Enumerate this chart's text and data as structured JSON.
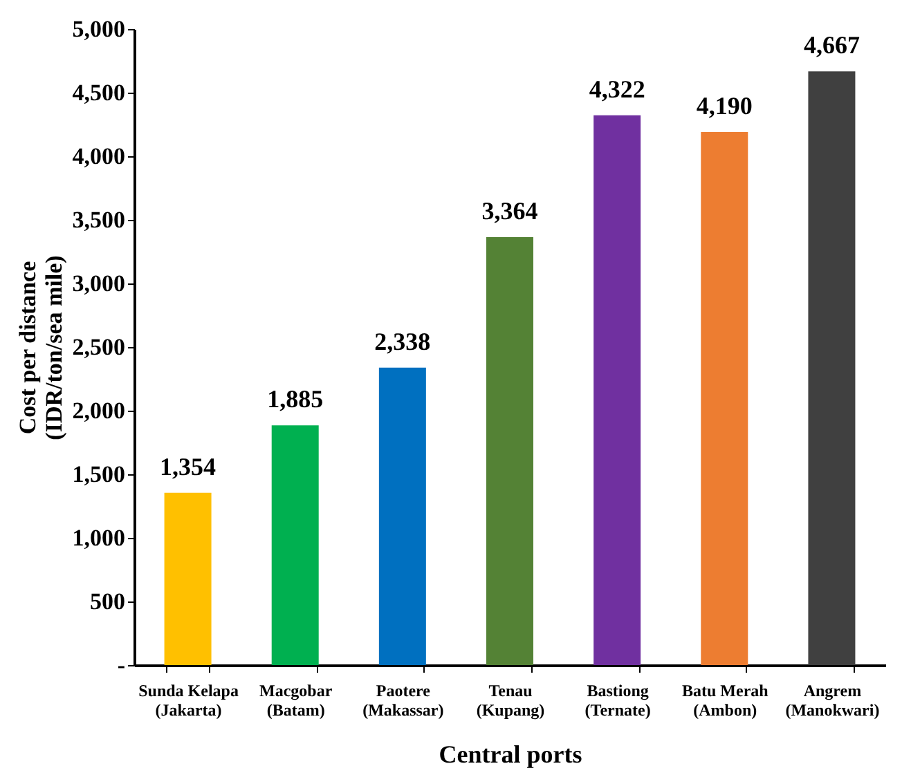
{
  "chart_data": {
    "type": "bar",
    "xlabel": "Central ports",
    "ylabel": "Cost per distance\n(IDR/ton/sea mile)",
    "categories": [
      "Sunda Kelapa\n(Jakarta)",
      "Macgobar\n(Batam)",
      "Paotere\n(Makassar)",
      "Tenau\n(Kupang)",
      "Bastiong\n(Ternate)",
      "Batu Merah\n(Ambon)",
      "Angrem\n(Manokwari)"
    ],
    "values": [
      1354,
      1885,
      2338,
      3364,
      4322,
      4190,
      4667
    ],
    "colors": [
      "#ffc000",
      "#00b050",
      "#0070c0",
      "#548235",
      "#7030a0",
      "#ed7d31",
      "#404040"
    ],
    "value_labels": [
      "1,354",
      "1,885",
      "2,338",
      "3,364",
      "4,322",
      "4,190",
      "4,667"
    ],
    "ylim": [
      0,
      5000
    ],
    "yticks": [
      {
        "value": 0,
        "label": "-"
      },
      {
        "value": 500,
        "label": "500"
      },
      {
        "value": 1000,
        "label": "1,000"
      },
      {
        "value": 1500,
        "label": "1,500"
      },
      {
        "value": 2000,
        "label": "2,000"
      },
      {
        "value": 2500,
        "label": "2,500"
      },
      {
        "value": 3000,
        "label": "3,000"
      },
      {
        "value": 3500,
        "label": "3,500"
      },
      {
        "value": 4000,
        "label": "4,000"
      },
      {
        "value": 4500,
        "label": "4,500"
      },
      {
        "value": 5000,
        "label": "5,000"
      }
    ],
    "grid": false,
    "legend": false
  }
}
